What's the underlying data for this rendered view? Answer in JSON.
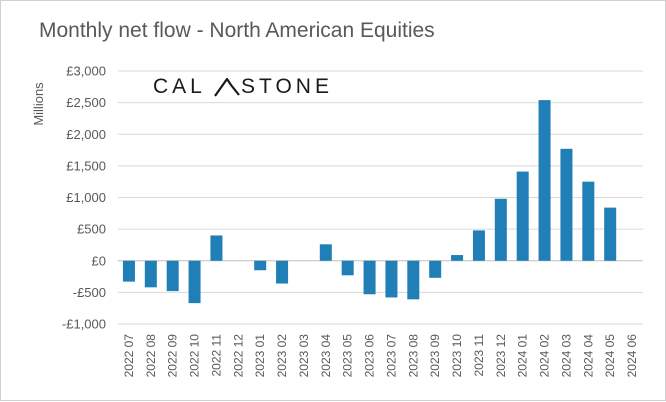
{
  "chart_data": {
    "type": "bar",
    "title": "Monthly net flow - North American Equities",
    "ylabel": "Millions",
    "xlabel": "",
    "brand": "CALASTONE",
    "ylim": [
      -1000,
      3000
    ],
    "yticks": [
      3000,
      2500,
      2000,
      1500,
      1000,
      500,
      0,
      -500,
      -1000
    ],
    "ytick_labels": [
      "£3,000",
      "£2,500",
      "£2,000",
      "£1,500",
      "£1,000",
      "£500",
      "£0",
      "-£500",
      "-£1,000"
    ],
    "bar_color": "#1f7fb6",
    "grid": true,
    "legend": "none",
    "categories": [
      "2022 07",
      "2022 08",
      "2022 09",
      "2022 10",
      "2022 11",
      "2022 12",
      "2023 01",
      "2023 02",
      "2023 03",
      "2023 04",
      "2023 05",
      "2023 06",
      "2023 07",
      "2023 08",
      "2023 09",
      "2023 10",
      "2023 11",
      "2023 12",
      "2024 01",
      "2024 02",
      "2024 03",
      "2024 04",
      "2024 05",
      "2024 06"
    ],
    "values": [
      -330,
      -420,
      -480,
      -670,
      400,
      0,
      -150,
      -360,
      0,
      260,
      -230,
      -530,
      -580,
      -610,
      -270,
      90,
      480,
      980,
      1410,
      2540,
      1770,
      1250,
      840,
      0
    ]
  }
}
